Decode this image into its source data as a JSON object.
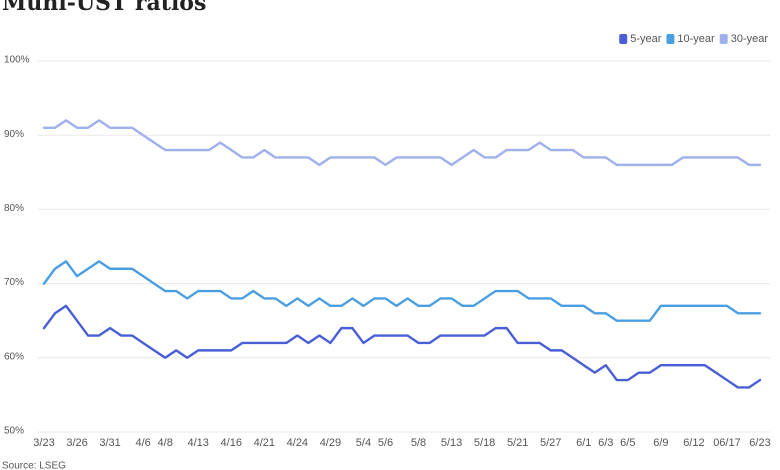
{
  "chart_data": {
    "type": "line",
    "title": "Muni-UST ratios",
    "source": "Source: LSEG",
    "categories": [
      "3/23",
      null,
      null,
      "3/26",
      null,
      null,
      "3/31",
      null,
      null,
      "4/6",
      null,
      "4/8",
      null,
      null,
      "4/13",
      null,
      null,
      "4/16",
      null,
      null,
      "4/21",
      null,
      null,
      "4/24",
      null,
      null,
      "4/29",
      null,
      null,
      "5/4",
      null,
      "5/6",
      null,
      null,
      "5/8",
      null,
      null,
      "5/13",
      null,
      null,
      "5/18",
      null,
      null,
      "5/21",
      null,
      null,
      "5/27",
      null,
      null,
      "6/1",
      null,
      "6/3",
      null,
      "6/5",
      null,
      null,
      "6/9",
      null,
      null,
      "6/12",
      null,
      null,
      "06/17",
      null,
      null,
      "6/23"
    ],
    "series": [
      {
        "name": "5-year",
        "color": "#4a5fd6",
        "values": [
          64,
          66,
          67,
          65,
          63,
          63,
          64,
          63,
          63,
          62,
          61,
          60,
          61,
          60,
          61,
          61,
          61,
          61,
          62,
          62,
          62,
          62,
          62,
          63,
          62,
          63,
          62,
          64,
          64,
          62,
          63,
          63,
          63,
          63,
          62,
          62,
          63,
          63,
          63,
          63,
          63,
          64,
          64,
          62,
          62,
          62,
          61,
          61,
          60,
          59,
          58,
          59,
          57,
          57,
          58,
          58,
          59,
          59,
          59,
          59,
          59,
          58,
          57,
          56,
          56,
          57
        ]
      },
      {
        "name": "10-year",
        "color": "#4a9fe2",
        "values": [
          70,
          72,
          73,
          71,
          72,
          73,
          72,
          72,
          72,
          71,
          70,
          69,
          69,
          68,
          69,
          69,
          69,
          68,
          68,
          69,
          68,
          68,
          67,
          68,
          67,
          68,
          67,
          67,
          68,
          67,
          68,
          68,
          67,
          68,
          67,
          67,
          68,
          68,
          67,
          67,
          68,
          69,
          69,
          69,
          68,
          68,
          68,
          67,
          67,
          67,
          66,
          66,
          65,
          65,
          65,
          65,
          67,
          67,
          67,
          67,
          67,
          67,
          67,
          66,
          66,
          66
        ]
      },
      {
        "name": "30-year",
        "color": "#9fb1ec",
        "values": [
          91,
          91,
          92,
          91,
          91,
          92,
          91,
          91,
          91,
          90,
          89,
          88,
          88,
          88,
          88,
          88,
          89,
          88,
          87,
          87,
          88,
          87,
          87,
          87,
          87,
          86,
          87,
          87,
          87,
          87,
          87,
          86,
          87,
          87,
          87,
          87,
          87,
          86,
          87,
          88,
          87,
          87,
          88,
          88,
          88,
          89,
          88,
          88,
          88,
          87,
          87,
          87,
          86,
          86,
          86,
          86,
          86,
          86,
          87,
          87,
          87,
          87,
          87,
          87,
          86,
          86
        ]
      }
    ],
    "ylim": [
      50,
      100
    ],
    "yticks": [
      {
        "value": 50,
        "label": "50%"
      },
      {
        "value": 60,
        "label": "60%"
      },
      {
        "value": 70,
        "label": "70%"
      },
      {
        "value": 80,
        "label": "80%"
      },
      {
        "value": 90,
        "label": "90%"
      },
      {
        "value": 100,
        "label": "100%"
      }
    ],
    "grid": true,
    "legend": "top-right"
  }
}
